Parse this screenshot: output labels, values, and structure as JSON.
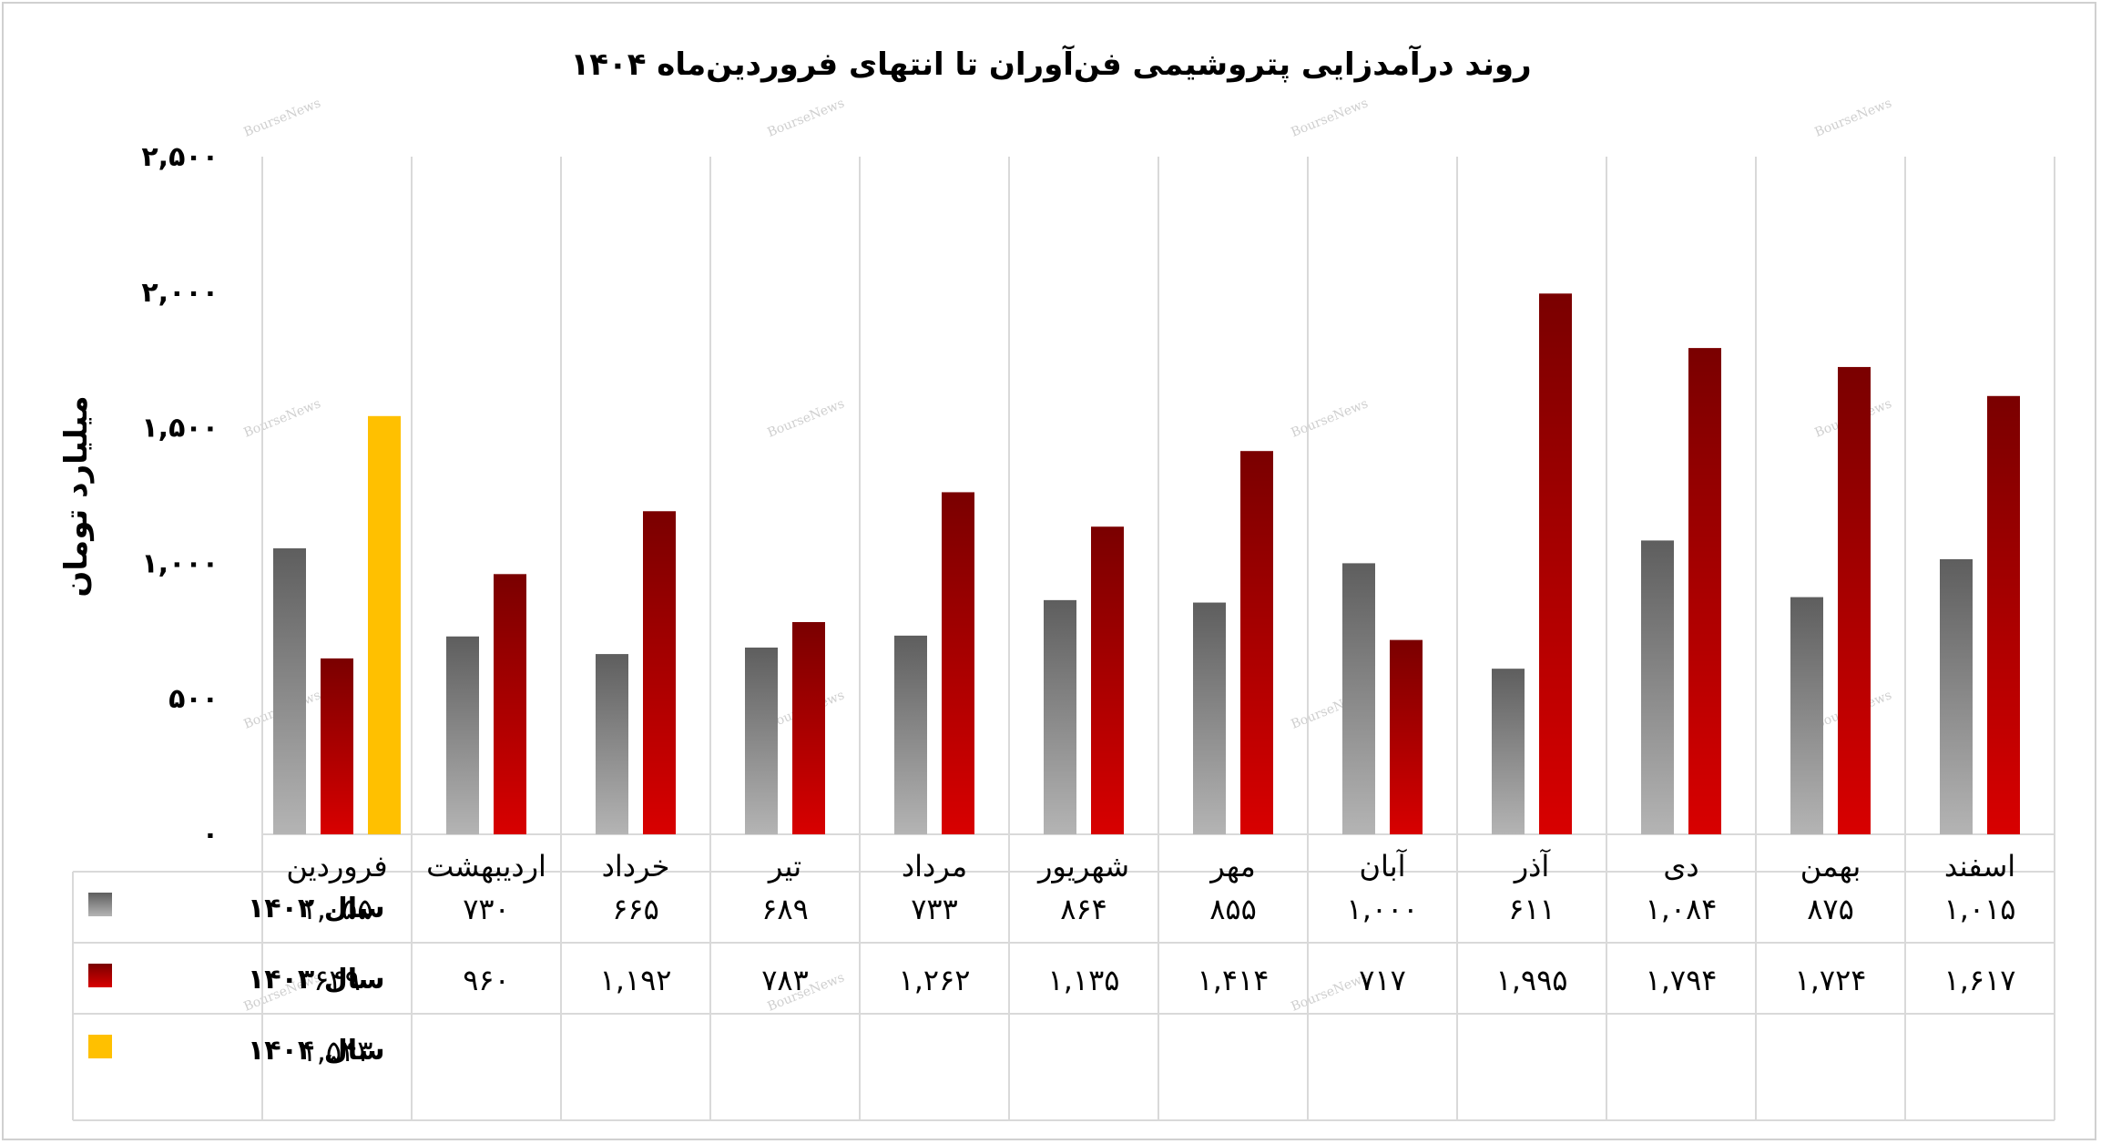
{
  "chart_data": {
    "type": "bar",
    "title": "روند درآمدزایی پتروشیمی فن‌آوران تا انتهای فروردین‌ماه ۱۴۰۴",
    "ylabel": "میلیارد تومان",
    "xlabel": "",
    "ylim": [
      0,
      2500
    ],
    "yticks": [
      0,
      500,
      1000,
      1500,
      2000,
      2500
    ],
    "ytick_labels": [
      "۰",
      "۵۰۰",
      "۱,۰۰۰",
      "۱,۵۰۰",
      "۲,۰۰۰",
      "۲,۵۰۰"
    ],
    "grid": "vertical",
    "legend": "data-table",
    "categories": [
      "فروردین",
      "اردیبهشت",
      "خرداد",
      "تیر",
      "مرداد",
      "شهریور",
      "مهر",
      "آبان",
      "آذر",
      "دی",
      "بهمن",
      "اسفند"
    ],
    "series": [
      {
        "name": "سال ۱۴۰۲",
        "color": "#7a7a7a",
        "values": [
          1055,
          730,
          665,
          689,
          733,
          864,
          855,
          1000,
          611,
          1084,
          875,
          1015
        ],
        "labels": [
          "۱,۰۵۵",
          "۷۳۰",
          "۶۶۵",
          "۶۸۹",
          "۷۳۳",
          "۸۶۴",
          "۸۵۵",
          "۱,۰۰۰",
          "۶۱۱",
          "۱,۰۸۴",
          "۸۷۵",
          "۱,۰۱۵"
        ]
      },
      {
        "name": "سال ۱۴۰۳",
        "color": "#b00000",
        "values": [
          649,
          960,
          1192,
          783,
          1262,
          1135,
          1414,
          717,
          1995,
          1794,
          1724,
          1617
        ],
        "labels": [
          "۶۴۹",
          "۹۶۰",
          "۱,۱۹۲",
          "۷۸۳",
          "۱,۲۶۲",
          "۱,۱۳۵",
          "۱,۴۱۴",
          "۷۱۷",
          "۱,۹۹۵",
          "۱,۷۹۴",
          "۱,۷۲۴",
          "۱,۶۱۷"
        ]
      },
      {
        "name": "سال ۱۴۰۴",
        "color": "#ffc000",
        "values": [
          1543,
          null,
          null,
          null,
          null,
          null,
          null,
          null,
          null,
          null,
          null,
          null
        ],
        "labels": [
          "۱,۵۴۳",
          "",
          "",
          "",
          "",
          "",
          "",
          "",
          "",
          "",
          "",
          ""
        ]
      }
    ],
    "watermark": "BourseNews"
  }
}
